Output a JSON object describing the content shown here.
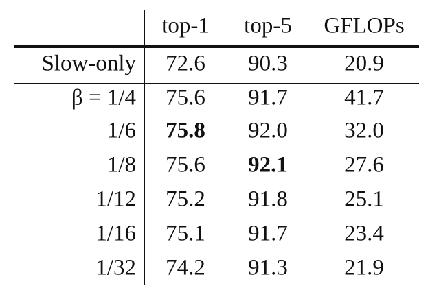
{
  "table": {
    "columns": [
      "top-1",
      "top-5",
      "GFLOPs"
    ],
    "rows": [
      {
        "label": "Slow-only",
        "cells": [
          "72.6",
          "90.3",
          "20.9"
        ]
      },
      {
        "label": "β = 1/4",
        "cells": [
          "75.6",
          "91.7",
          "41.7"
        ]
      },
      {
        "label": "1/6",
        "cells": [
          "75.8",
          "92.0",
          "32.0"
        ],
        "bold": 0
      },
      {
        "label": "1/8",
        "cells": [
          "75.6",
          "92.1",
          "27.6"
        ],
        "bold": 1
      },
      {
        "label": "1/12",
        "cells": [
          "75.2",
          "91.8",
          "25.1"
        ]
      },
      {
        "label": "1/16",
        "cells": [
          "75.1",
          "91.7",
          "23.4"
        ]
      },
      {
        "label": "1/32",
        "cells": [
          "74.2",
          "91.3",
          "21.9"
        ]
      }
    ]
  }
}
